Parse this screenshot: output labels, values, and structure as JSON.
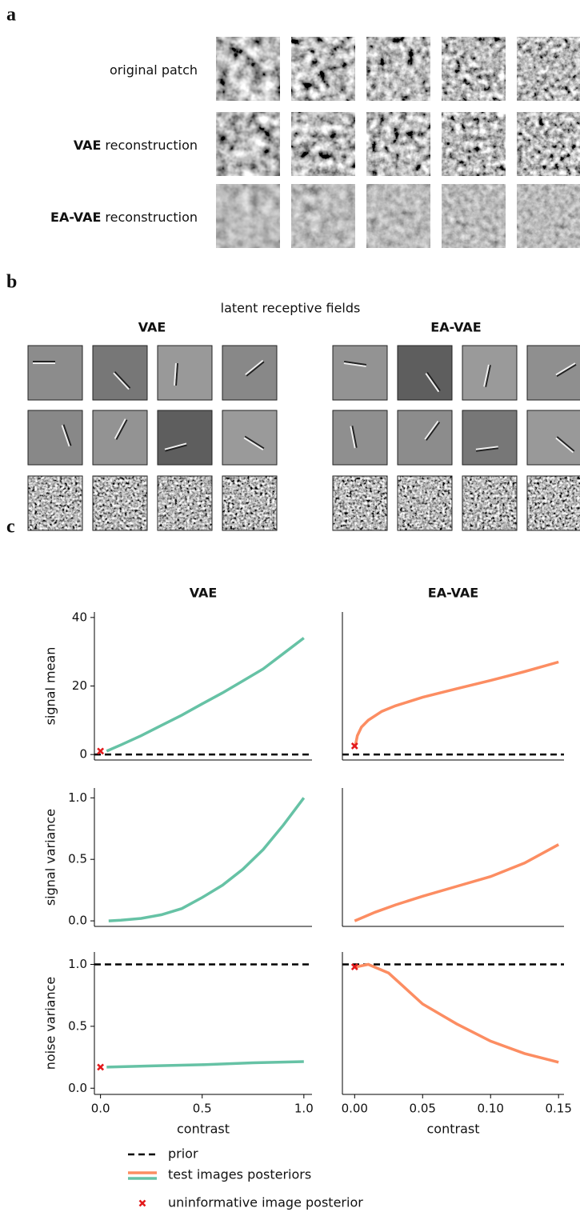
{
  "panel_a": {
    "label": "a",
    "rows": [
      {
        "text": "original patch"
      },
      {
        "bold": "VAE",
        "text": "reconstruction"
      },
      {
        "bold": "EA-VAE",
        "text": "reconstruction"
      }
    ]
  },
  "panel_b": {
    "label": "b",
    "title": "latent receptive fields",
    "groups": [
      "VAE",
      "EA-VAE"
    ]
  },
  "panel_c": {
    "label": "c"
  },
  "chart_data": [
    {
      "type": "line",
      "title": "VAE",
      "ylabel": "signal mean",
      "xlim": [
        -0.03,
        1.04
      ],
      "ylim": [
        -1.6,
        41.6
      ],
      "yticks": [
        0,
        20,
        40
      ],
      "hlines": [
        {
          "y": 0,
          "color": "#000000",
          "dash": true
        }
      ],
      "series": [
        {
          "color": "#66c2a5",
          "x": [
            0.03,
            0.1,
            0.2,
            0.3,
            0.4,
            0.5,
            0.6,
            0.7,
            0.8,
            0.9,
            1.0
          ],
          "values": [
            1,
            2.8,
            5.5,
            8.5,
            11.5,
            14.8,
            18,
            21.5,
            25,
            29.5,
            34
          ]
        }
      ],
      "points": [
        {
          "x": 0,
          "y": 1,
          "color": "#e31a1c"
        }
      ]
    },
    {
      "type": "line",
      "title": "EA-VAE",
      "xlim": [
        -0.009,
        0.154
      ],
      "ylim": [
        -1.6,
        41.6
      ],
      "hlines": [
        {
          "y": 0,
          "color": "#000000",
          "dash": true
        }
      ],
      "series": [
        {
          "color": "#fc8d62",
          "x": [
            0.0005,
            0.002,
            0.005,
            0.01,
            0.02,
            0.03,
            0.05,
            0.075,
            0.1,
            0.125,
            0.15
          ],
          "values": [
            2.5,
            5.5,
            8,
            10,
            12.6,
            14.2,
            16.7,
            19.2,
            21.6,
            24.2,
            27
          ]
        }
      ],
      "points": [
        {
          "x": 0,
          "y": 2.5,
          "color": "#e31a1c"
        }
      ]
    },
    {
      "type": "line",
      "ylabel": "signal variance",
      "xlim": [
        -0.03,
        1.04
      ],
      "ylim": [
        -0.045,
        1.08
      ],
      "yticks": [
        {
          "value": 0,
          "label": "0.0"
        },
        0.5,
        {
          "value": 1,
          "label": "1.0"
        }
      ],
      "series": [
        {
          "color": "#66c2a5",
          "x": [
            0.04,
            0.1,
            0.2,
            0.3,
            0.4,
            0.5,
            0.6,
            0.7,
            0.8,
            0.9,
            1.0
          ],
          "values": [
            0,
            0.005,
            0.02,
            0.05,
            0.1,
            0.19,
            0.29,
            0.42,
            0.58,
            0.78,
            1.0
          ]
        }
      ]
    },
    {
      "type": "line",
      "xlim": [
        -0.009,
        0.154
      ],
      "ylim": [
        -0.045,
        1.08
      ],
      "series": [
        {
          "color": "#fc8d62",
          "x": [
            0,
            0.015,
            0.03,
            0.05,
            0.075,
            0.1,
            0.125,
            0.15
          ],
          "values": [
            0,
            0.07,
            0.13,
            0.2,
            0.28,
            0.36,
            0.47,
            0.62
          ]
        }
      ]
    },
    {
      "type": "line",
      "ylabel": "noise variance",
      "xlabel": "contrast",
      "xlim": [
        -0.03,
        1.04
      ],
      "ylim": [
        -0.05,
        1.1
      ],
      "yticks": [
        {
          "value": 0,
          "label": "0.0"
        },
        0.5,
        {
          "value": 1,
          "label": "1.0"
        }
      ],
      "xticks": [
        {
          "value": 0,
          "label": "0.0"
        },
        0.5,
        {
          "value": 1,
          "label": "1.0"
        }
      ],
      "hlines": [
        {
          "y": 1,
          "color": "#000000",
          "dash": true
        }
      ],
      "series": [
        {
          "color": "#66c2a5",
          "x": [
            0.03,
            0.25,
            0.5,
            0.75,
            1.0
          ],
          "values": [
            0.17,
            0.18,
            0.19,
            0.205,
            0.215
          ]
        }
      ],
      "points": [
        {
          "x": 0,
          "y": 0.17,
          "color": "#e31a1c"
        }
      ]
    },
    {
      "type": "line",
      "xlabel": "contrast",
      "xlim": [
        -0.009,
        0.154
      ],
      "ylim": [
        -0.05,
        1.1
      ],
      "xticks": [
        {
          "value": 0,
          "label": "0.00"
        },
        0.05,
        {
          "value": 0.1,
          "label": "0.10"
        },
        0.15
      ],
      "hlines": [
        {
          "y": 1,
          "color": "#000000",
          "dash": true
        }
      ],
      "series": [
        {
          "color": "#fc8d62",
          "x": [
            0.001,
            0.01,
            0.025,
            0.05,
            0.075,
            0.1,
            0.125,
            0.15
          ],
          "values": [
            0.98,
            1.0,
            0.93,
            0.68,
            0.52,
            0.38,
            0.28,
            0.21
          ]
        }
      ],
      "points": [
        {
          "x": 0,
          "y": 0.98,
          "color": "#e31a1c"
        }
      ]
    }
  ],
  "legend": {
    "entries": [
      {
        "label": "prior",
        "kind": "dashed",
        "colors": [
          "#000000"
        ]
      },
      {
        "label": "test images posteriors",
        "kind": "line",
        "colors": [
          "#fc8d62",
          "#66c2a5"
        ]
      },
      {
        "label": "uninformative image posterior",
        "kind": "marker",
        "colors": [
          "#e31a1c"
        ]
      }
    ]
  }
}
